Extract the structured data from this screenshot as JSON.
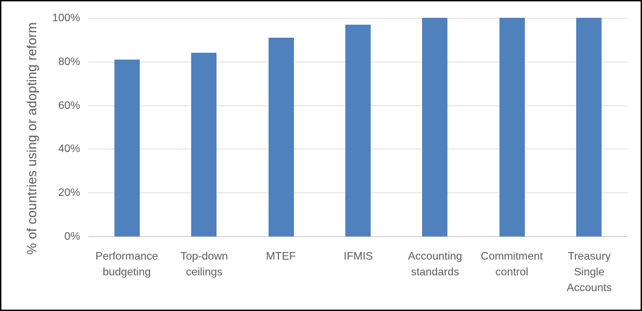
{
  "chart_data": {
    "type": "bar",
    "title": "",
    "xlabel": "",
    "ylabel": "% of countries using or adopting reform",
    "categories": [
      "Performance budgeting",
      "Top-down ceilings",
      "MTEF",
      "IFMIS",
      "Accounting standards",
      "Commitment control",
      "Treasury Single Accounts"
    ],
    "category_label_lines": [
      [
        "Performance",
        "budgeting"
      ],
      [
        "Top-down",
        "ceilings"
      ],
      [
        "MTEF"
      ],
      [
        "IFMIS"
      ],
      [
        "Accounting",
        "standards"
      ],
      [
        "Commitment",
        "control"
      ],
      [
        "Treasury",
        "Single",
        "Accounts"
      ]
    ],
    "values": [
      81,
      84,
      91,
      97,
      100,
      100,
      100
    ],
    "unit": "%",
    "ylim": [
      0,
      100
    ],
    "yticks": [
      0,
      20,
      40,
      60,
      80,
      100
    ],
    "ytick_labels": [
      "0%",
      "20%",
      "40%",
      "60%",
      "80%",
      "100%"
    ],
    "grid": "horizontal",
    "legend": "none",
    "colors": {
      "bar": "#4F81BD",
      "gridline": "#D9D9D9",
      "axis_line": "#C0C0C0",
      "text": "#595959",
      "frame": "#000000",
      "background": "#FFFFFF"
    }
  }
}
